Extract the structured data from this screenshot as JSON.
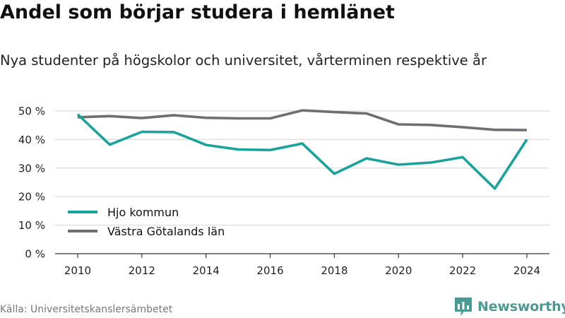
{
  "title": "Andel som börjar studera i hemlänet",
  "subtitle": "Nya studenter på högskolor och universitet, vårterminen respektive år",
  "source": "Källa: Universitetskanslersämbetet",
  "brand": {
    "name": "Newsworthy",
    "color": "#4a9a94",
    "icon": "newsworthy-logo-icon"
  },
  "chart_data": {
    "type": "line",
    "x": [
      2010,
      2011,
      2012,
      2013,
      2014,
      2015,
      2016,
      2017,
      2018,
      2019,
      2020,
      2021,
      2022,
      2023,
      2024
    ],
    "x_ticks": [
      2010,
      2012,
      2014,
      2016,
      2018,
      2020,
      2022,
      2024
    ],
    "x_tick_labels": [
      "2010",
      "2012",
      "2014",
      "2016",
      "2018",
      "2020",
      "2022",
      "2024"
    ],
    "ylim": [
      0,
      50
    ],
    "y_ticks": [
      0,
      10,
      20,
      30,
      40,
      50
    ],
    "y_tick_labels": [
      "0 %",
      "10 %",
      "20 %",
      "30 %",
      "40 %",
      "50 %"
    ],
    "grid": true,
    "legend": "bottom-left",
    "series": [
      {
        "name": "Hjo kommun",
        "color": "#1aa39a",
        "values": [
          48.8,
          38.2,
          42.7,
          42.6,
          38.1,
          36.5,
          36.3,
          38.6,
          28.0,
          33.4,
          31.2,
          31.9,
          33.8,
          22.8,
          40.0
        ]
      },
      {
        "name": "Västra Götalands län",
        "color": "#6e6e73",
        "values": [
          47.8,
          48.2,
          47.5,
          48.5,
          47.6,
          47.4,
          47.4,
          50.2,
          49.6,
          49.1,
          45.3,
          45.1,
          44.3,
          43.4,
          43.3
        ]
      }
    ]
  }
}
